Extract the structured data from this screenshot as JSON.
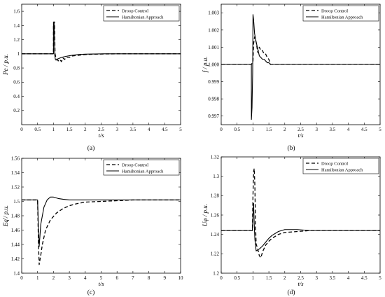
{
  "chart_data": [
    {
      "type": "line",
      "caption": "(a)",
      "xlabel": "t/s",
      "ylabel": "Pe / p.u.",
      "xlim": [
        0,
        5
      ],
      "ylim": [
        0.0,
        1.7
      ],
      "xticks": [
        "0",
        "0.5",
        "1",
        "1.5",
        "2",
        "2.5",
        "3",
        "3.5",
        "4",
        "4.5",
        "5"
      ],
      "yticks": [
        "0.2",
        "0.4",
        "0.6",
        "0.8",
        "1",
        "1.2",
        "1.4",
        "1.6"
      ],
      "legend": [
        "Droop Control",
        "Hamiltonian Approach"
      ],
      "legend_position": "top-right",
      "series": [
        {
          "name": "Droop Control",
          "style": "dashed",
          "x": [
            0,
            1.0,
            1.0,
            1.03,
            1.05,
            1.07,
            1.1,
            1.15,
            1.2,
            1.25,
            1.3,
            1.35,
            1.4,
            1.5,
            1.6,
            1.8,
            2.0,
            2.3,
            2.6,
            3.0,
            3.5,
            4.0,
            5.0
          ],
          "y": [
            1.0,
            1.0,
            1.4,
            1.45,
            1.0,
            0.96,
            0.93,
            0.9,
            0.92,
            0.89,
            0.94,
            0.92,
            0.95,
            0.95,
            0.97,
            0.98,
            0.99,
            0.995,
            0.998,
            1.0,
            1.0,
            1.0,
            1.0
          ]
        },
        {
          "name": "Hamiltonian Approach",
          "style": "solid",
          "x": [
            0,
            1.0,
            1.0,
            1.02,
            1.04,
            1.06,
            1.08,
            1.1,
            1.2,
            1.3,
            1.4,
            1.6,
            1.8,
            2.0,
            2.3,
            2.6,
            3.0,
            4.0,
            5.0
          ],
          "y": [
            1.0,
            1.0,
            1.45,
            1.42,
            0.98,
            0.92,
            0.91,
            0.92,
            0.94,
            0.955,
            0.965,
            0.98,
            0.99,
            0.995,
            0.998,
            1.0,
            1.0,
            1.0,
            1.0
          ]
        }
      ]
    },
    {
      "type": "line",
      "caption": "(b)",
      "xlabel": "t/s",
      "ylabel": "f / p.u.",
      "xlim": [
        0,
        5
      ],
      "ylim": [
        0.9965,
        1.0035
      ],
      "xticks": [
        "0",
        "0.5",
        "1",
        "1.5",
        "2",
        "2.5",
        "3",
        "3.5",
        "4",
        "4.5",
        "5"
      ],
      "yticks": [
        "0.997",
        "0.998",
        "0.999",
        "1.000",
        "1.001",
        "1.002",
        "1.003"
      ],
      "legend": [
        "Droop Control",
        "Hamiltonian Approach"
      ],
      "legend_position": "top-right",
      "series": [
        {
          "name": "Droop Control",
          "style": "dashed",
          "x": [
            0,
            0.95,
            1.0,
            1.02,
            1.05,
            1.1,
            1.15,
            1.2,
            1.25,
            1.3,
            1.35,
            1.4,
            1.45,
            1.5,
            1.55,
            1.6,
            5.0
          ],
          "y": [
            1.0,
            1.0,
            1.0002,
            1.0012,
            1.0016,
            1.0013,
            1.0007,
            1.001,
            1.0008,
            1.0008,
            1.0006,
            1.0006,
            1.0004,
            1.0003,
            1.0,
            1.0,
            1.0
          ]
        },
        {
          "name": "Hamiltonian Approach",
          "style": "solid",
          "x": [
            0,
            0.95,
            0.95,
            0.97,
            0.99,
            1.0,
            1.02,
            1.05,
            1.1,
            1.15,
            1.2,
            1.25,
            1.3,
            1.35,
            1.4,
            1.45,
            1.5,
            1.55,
            1.6,
            5.0
          ],
          "y": [
            1.0,
            1.0,
            0.9968,
            0.9975,
            0.9995,
            1.0029,
            1.0026,
            1.0018,
            1.0013,
            1.0009,
            1.0005,
            1.0004,
            1.0003,
            1.0003,
            1.0002,
            1.0001,
            1.0001,
            1.0,
            1.0,
            1.0
          ]
        }
      ]
    },
    {
      "type": "line",
      "caption": "(c)",
      "xlabel": "t/s",
      "ylabel": "Eq'/ p.u.",
      "xlim": [
        0,
        10
      ],
      "ylim": [
        1.4,
        1.56
      ],
      "xticks": [
        "0",
        "1",
        "2",
        "3",
        "4",
        "5",
        "6",
        "7",
        "8",
        "9",
        "10"
      ],
      "yticks": [
        "1.4",
        "1.42",
        "1.44",
        "1.46",
        "1.48",
        "1.5",
        "1.52",
        "1.54",
        "1.56"
      ],
      "legend": [
        "Droop Control",
        "Hamiltonian Approach"
      ],
      "legend_position": "top-right",
      "series": [
        {
          "name": "Droop Control",
          "style": "dashed",
          "x": [
            0,
            1.0,
            1.05,
            1.1,
            1.2,
            1.3,
            1.5,
            1.8,
            2.2,
            2.6,
            3.0,
            3.5,
            4.0,
            5.0,
            6.0,
            7.0,
            8.0,
            10.0
          ],
          "y": [
            1.502,
            1.502,
            1.445,
            1.412,
            1.425,
            1.44,
            1.46,
            1.474,
            1.484,
            1.49,
            1.494,
            1.497,
            1.499,
            1.5,
            1.501,
            1.502,
            1.502,
            1.502
          ]
        },
        {
          "name": "Hamiltonian Approach",
          "style": "solid",
          "x": [
            0,
            1.0,
            1.05,
            1.1,
            1.2,
            1.4,
            1.6,
            1.8,
            2.0,
            2.3,
            2.6,
            3.0,
            3.5,
            4.0,
            5.0,
            10.0
          ],
          "y": [
            1.502,
            1.502,
            1.465,
            1.437,
            1.468,
            1.492,
            1.502,
            1.506,
            1.506,
            1.504,
            1.503,
            1.502,
            1.502,
            1.502,
            1.502,
            1.502
          ]
        }
      ]
    },
    {
      "type": "line",
      "caption": "(d)",
      "xlabel": "t/s",
      "ylabel": "Uφ / p.u.",
      "xlim": [
        0,
        5
      ],
      "ylim": [
        1.2,
        1.32
      ],
      "xticks": [
        "0",
        "0.5",
        "1",
        "1.5",
        "2",
        "2.5",
        "3",
        "3.5",
        "4",
        "4.5",
        "5"
      ],
      "yticks": [
        "1.2",
        "1.22",
        "1.24",
        "1.26",
        "1.28",
        "1.3",
        "1.32"
      ],
      "legend": [
        "Droop Control",
        "Hamiltonian Approach"
      ],
      "legend_position": "top-right",
      "series": [
        {
          "name": "Droop Control",
          "style": "dashed",
          "x": [
            0,
            0.98,
            1.0,
            1.02,
            1.04,
            1.06,
            1.08,
            1.1,
            1.15,
            1.2,
            1.25,
            1.3,
            1.4,
            1.5,
            1.6,
            1.8,
            2.0,
            2.4,
            2.8,
            3.0,
            5.0
          ],
          "y": [
            1.244,
            1.244,
            1.28,
            1.305,
            1.308,
            1.29,
            1.25,
            1.23,
            1.225,
            1.218,
            1.216,
            1.222,
            1.229,
            1.233,
            1.236,
            1.24,
            1.242,
            1.243,
            1.244,
            1.244,
            1.244
          ]
        },
        {
          "name": "Hamiltonian Approach",
          "style": "solid",
          "x": [
            0,
            0.98,
            1.0,
            1.02,
            1.04,
            1.06,
            1.1,
            1.2,
            1.3,
            1.4,
            1.5,
            1.6,
            1.8,
            2.0,
            2.4,
            2.8,
            3.0,
            5.0
          ],
          "y": [
            1.244,
            1.244,
            1.26,
            1.272,
            1.25,
            1.235,
            1.223,
            1.225,
            1.228,
            1.232,
            1.236,
            1.239,
            1.243,
            1.245,
            1.245,
            1.244,
            1.244,
            1.244
          ]
        }
      ]
    }
  ]
}
